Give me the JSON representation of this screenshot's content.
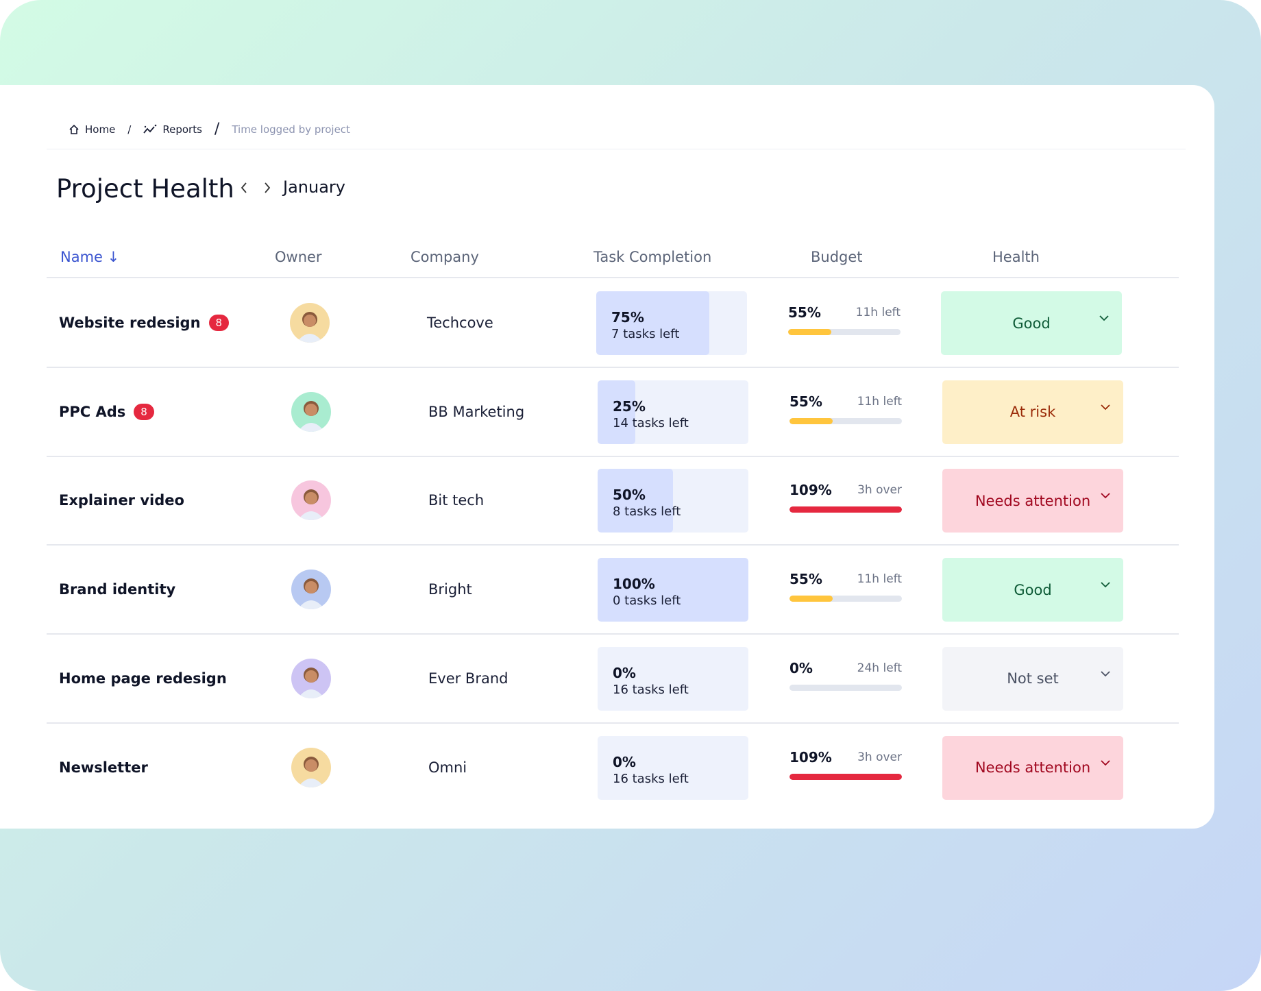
{
  "breadcrumb": {
    "home": "Home",
    "reports": "Reports",
    "current": "Time logged by project"
  },
  "header": {
    "title": "Project Health",
    "month": "January"
  },
  "columns": {
    "name": "Name",
    "owner": "Owner",
    "company": "Company",
    "task": "Task Completion",
    "budget": "Budget",
    "health": "Health"
  },
  "colors": {
    "good_bg": "#d3fae6",
    "good_fg": "#0d5a36",
    "risk_bg": "#feefc8",
    "risk_fg": "#9a2a08",
    "attn_bg": "#fdd5dc",
    "attn_fg": "#a0061e",
    "notset_bg": "#f3f4f8",
    "notset_fg": "#4a5163",
    "budget_ok": "#ffc53d",
    "budget_over": "#e5283f"
  },
  "rows": [
    {
      "name": "Website redesign",
      "badge": "8",
      "owner": "woman-curly-hair",
      "avatar_bg": "#f6dba0",
      "company": "Techcove",
      "task_pct": "75%",
      "task_value": 75,
      "tasks_left": "7 tasks left",
      "budget_pct": "55%",
      "budget_value": 55,
      "budget_note": "11h left",
      "health": "Good",
      "health_kind": "good"
    },
    {
      "name": "PPC Ads",
      "badge": "8",
      "owner": "man-short-hair",
      "avatar_bg": "#a9ecd0",
      "company": "BB Marketing",
      "task_pct": "25%",
      "task_value": 25,
      "tasks_left": "14 tasks left",
      "budget_pct": "55%",
      "budget_value": 55,
      "budget_note": "11h left",
      "health": "At risk",
      "health_kind": "risk"
    },
    {
      "name": "Explainer video",
      "badge": "",
      "owner": "woman-dark-hair",
      "avatar_bg": "#f7c6de",
      "company": "Bit tech",
      "task_pct": "50%",
      "task_value": 50,
      "tasks_left": "8 tasks left",
      "budget_pct": "109%",
      "budget_value": 109,
      "budget_note": "3h over",
      "health": "Needs attention",
      "health_kind": "attn"
    },
    {
      "name": "Brand identity",
      "badge": "",
      "owner": "man-beard",
      "avatar_bg": "#b8c9f2",
      "company": "Bright",
      "task_pct": "100%",
      "task_value": 100,
      "tasks_left": "0 tasks left",
      "budget_pct": "55%",
      "budget_value": 55,
      "budget_note": "11h left",
      "health": "Good",
      "health_kind": "good"
    },
    {
      "name": "Home page redesign",
      "badge": "",
      "owner": "man-smiling",
      "avatar_bg": "#cdc4f4",
      "company": "Ever Brand",
      "task_pct": "0%",
      "task_value": 0,
      "tasks_left": "16 tasks left",
      "budget_pct": "0%",
      "budget_value": 0,
      "budget_note": "24h left",
      "health": "Not set",
      "health_kind": "notset"
    },
    {
      "name": "Newsletter",
      "badge": "",
      "owner": "woman-curly-hair",
      "avatar_bg": "#f6dba0",
      "company": "Omni",
      "task_pct": "0%",
      "task_value": 0,
      "tasks_left": "16 tasks left",
      "budget_pct": "109%",
      "budget_value": 109,
      "budget_note": "3h over",
      "health": "Needs attention",
      "health_kind": "attn"
    }
  ]
}
